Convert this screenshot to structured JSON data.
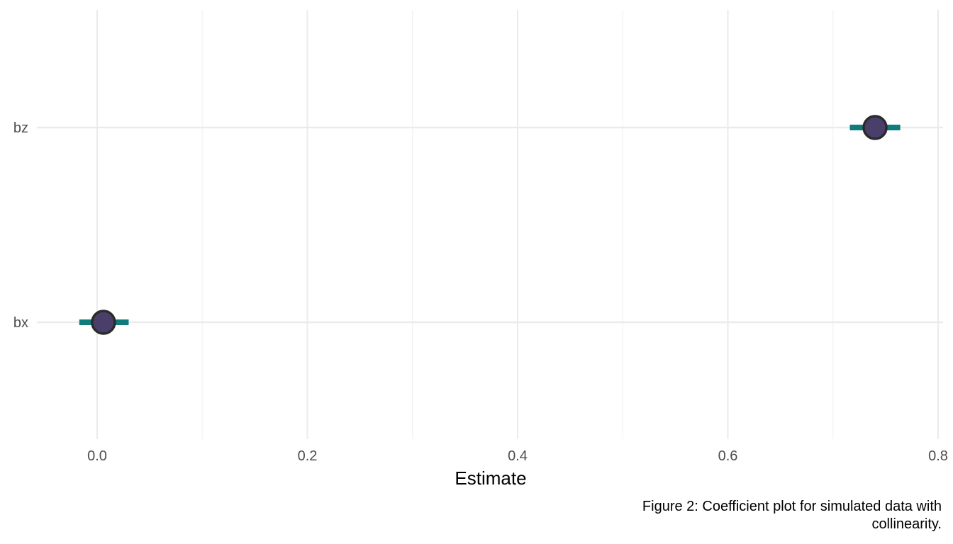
{
  "chart_data": {
    "type": "scatter",
    "subtype": "coefficient-plot",
    "title": "",
    "xlabel": "Estimate",
    "ylabel": "",
    "xlim": [
      -0.06,
      0.81
    ],
    "x_ticks": [
      0.0,
      0.2,
      0.4,
      0.6,
      0.8
    ],
    "x_tick_labels": [
      "0.0",
      "0.2",
      "0.4",
      "0.6",
      "0.8"
    ],
    "categories": [
      "bx",
      "bz"
    ],
    "points": [
      {
        "term": "bx",
        "estimate": 0.006,
        "ci_low": -0.017,
        "ci_high": 0.03
      },
      {
        "term": "bz",
        "estimate": 0.74,
        "ci_low": 0.716,
        "ci_high": 0.764
      }
    ],
    "grid": true,
    "legend": "none",
    "colors": {
      "interval": "#0f7b7b",
      "point_fill": "#4a3f6b",
      "point_stroke": "#2b2b2b",
      "grid_major": "#ebebeb",
      "grid_minor": "#f2f2f2"
    }
  },
  "caption": {
    "line1": "Figure 2: Coefficient plot for simulated data with",
    "line2": "collinearity."
  }
}
